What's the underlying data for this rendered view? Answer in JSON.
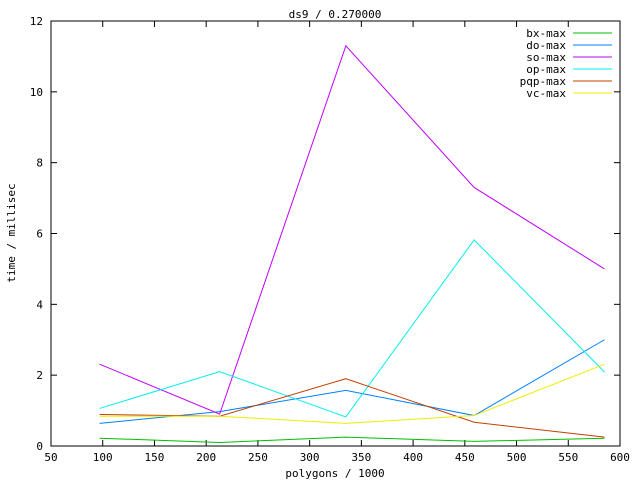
{
  "chart_data": {
    "type": "line",
    "title": "ds9 / 0.270000",
    "xlabel": "polygons / 1000",
    "ylabel": "time / millisec",
    "xlim": [
      50,
      600
    ],
    "ylim": [
      0,
      12
    ],
    "xticks": [
      50,
      100,
      150,
      200,
      250,
      300,
      350,
      400,
      450,
      500,
      550,
      600
    ],
    "yticks": [
      0,
      2,
      4,
      6,
      8,
      10,
      12
    ],
    "grid": false,
    "legend_position": "top-right",
    "x": [
      97,
      213,
      335,
      459,
      585
    ],
    "series": [
      {
        "name": "bx-max",
        "color": "#00c000",
        "values": [
          0.22,
          0.1,
          0.25,
          0.13,
          0.22
        ]
      },
      {
        "name": "do-max",
        "color": "#0080ff",
        "values": [
          0.64,
          0.97,
          1.57,
          0.86,
          3.0
        ]
      },
      {
        "name": "so-max",
        "color": "#c000ff",
        "values": [
          2.31,
          0.9,
          11.3,
          7.3,
          5.0
        ]
      },
      {
        "name": "op-max",
        "color": "#00eeee",
        "values": [
          1.06,
          2.1,
          0.82,
          5.82,
          2.09
        ]
      },
      {
        "name": "pqp-max",
        "color": "#c04000",
        "values": [
          0.89,
          0.84,
          1.9,
          0.67,
          0.25
        ]
      },
      {
        "name": "vc-max",
        "color": "#eeee00",
        "values": [
          0.84,
          0.84,
          0.64,
          0.86,
          2.31
        ]
      }
    ]
  }
}
